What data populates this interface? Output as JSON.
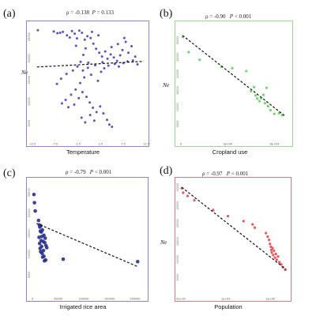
{
  "chart_data": [
    {
      "type": "scatter",
      "panel_label": "(a)",
      "stat_prefix": "ρ = -0.138",
      "p_label": "P",
      "stat_value": "= 0.133",
      "xlabel": "Temperature",
      "ylabel": "Ne",
      "color": "#4b3fb8",
      "frame_color": "#8c86cf",
      "xlim": [
        -12.5,
        12.5
      ],
      "ylim": [
        1000,
        28000
      ],
      "x_ticks": [
        "-12.5",
        "-7.5",
        "-2.5",
        "2.5",
        "7.5",
        "12.5"
      ],
      "y_ticks": [
        "5000",
        "10000",
        "15000",
        "20000",
        "25000"
      ],
      "y_tick_values": [
        5000,
        10000,
        15000,
        20000,
        25000
      ],
      "fit": [
        [
          -11.5,
          18000
        ],
        [
          12,
          19300
        ]
      ],
      "points": [
        [
          -11.3,
          26500
        ],
        [
          -7.8,
          26200
        ],
        [
          -7.0,
          25800
        ],
        [
          -6.4,
          25900
        ],
        [
          -5.8,
          26100
        ],
        [
          -4.9,
          25300
        ],
        [
          -4.3,
          24800
        ],
        [
          -3.8,
          26300
        ],
        [
          -3.2,
          25700
        ],
        [
          -2.7,
          24600
        ],
        [
          -2.2,
          26400
        ],
        [
          -1.6,
          25900
        ],
        [
          -1.0,
          24300
        ],
        [
          -0.4,
          25100
        ],
        [
          0.3,
          24700
        ],
        [
          0.9,
          23400
        ],
        [
          1.5,
          22200
        ],
        [
          2.2,
          21300
        ],
        [
          2.8,
          20400
        ],
        [
          3.5,
          21600
        ],
        [
          4.0,
          19900
        ],
        [
          4.7,
          20900
        ],
        [
          5.4,
          20200
        ],
        [
          6.1,
          19400
        ],
        [
          6.8,
          20700
        ],
        [
          7.3,
          21900
        ],
        [
          8.0,
          23800
        ],
        [
          8.6,
          21300
        ],
        [
          9.3,
          22800
        ],
        [
          10.1,
          20400
        ],
        [
          -0.8,
          22300
        ],
        [
          -1.3,
          20800
        ],
        [
          -1.9,
          19200
        ],
        [
          -2.6,
          18100
        ],
        [
          -0.3,
          17800
        ],
        [
          0.4,
          16200
        ],
        [
          -1.1,
          15600
        ],
        [
          -2.0,
          14300
        ],
        [
          -3.0,
          12800
        ],
        [
          -4.0,
          11600
        ],
        [
          -5.2,
          10400
        ],
        [
          -6.0,
          9600
        ],
        [
          -4.6,
          8700
        ],
        [
          -3.3,
          9300
        ],
        [
          -2.3,
          10800
        ],
        [
          -1.5,
          12200
        ],
        [
          -0.6,
          11100
        ],
        [
          0.1,
          9800
        ],
        [
          0.8,
          8600
        ],
        [
          1.6,
          7600
        ],
        [
          2.4,
          8900
        ],
        [
          3.1,
          7300
        ],
        [
          3.9,
          5800
        ],
        [
          4.4,
          4700
        ],
        [
          5.0,
          4200
        ],
        [
          -1.7,
          6300
        ],
        [
          -0.9,
          5200
        ],
        [
          0.2,
          6900
        ],
        [
          1.1,
          5600
        ],
        [
          1.9,
          14800
        ],
        [
          2.6,
          16900
        ],
        [
          3.3,
          17700
        ],
        [
          4.2,
          18300
        ],
        [
          5.6,
          18700
        ],
        [
          6.5,
          18100
        ],
        [
          7.5,
          18900
        ],
        [
          8.4,
          19300
        ],
        [
          9.6,
          19500
        ],
        [
          10.6,
          18600
        ],
        [
          -3.6,
          17200
        ],
        [
          -5.0,
          16400
        ],
        [
          -6.2,
          15300
        ],
        [
          -7.1,
          14100
        ],
        [
          -0.2,
          19000
        ],
        [
          1.3,
          18400
        ],
        [
          2.9,
          19100
        ],
        [
          -1.4,
          17200
        ],
        [
          4.9,
          22600
        ],
        [
          6.3,
          23300
        ],
        [
          7.7,
          24700
        ],
        [
          2.0,
          25300
        ],
        [
          0.6,
          26100
        ],
        [
          -2.9,
          22900
        ]
      ]
    },
    {
      "type": "scatter",
      "panel_label": "(b)",
      "stat_prefix": "ρ = -0.90",
      "p_label": "P",
      "stat_value": "< 0.001",
      "xlabel": "Cropland use",
      "ylabel": "Ne",
      "color": "#5fd35a",
      "frame_color": "#9ad797",
      "xlim": [
        0,
        70000
      ],
      "ylim": [
        0,
        35000
      ],
      "x_ticks": [
        "0",
        "3e+04",
        "6e+04"
      ],
      "x_tick_values": [
        0,
        30000,
        60000
      ],
      "y_ticks": [
        "5000",
        "10000",
        "15000",
        "20000",
        "25000",
        "30000"
      ],
      "y_tick_values": [
        5000,
        10000,
        15000,
        20000,
        25000,
        30000
      ],
      "fit": [
        [
          1000,
          31500
        ],
        [
          67000,
          7300
        ]
      ],
      "points": [
        [
          1200,
          31000
        ],
        [
          5000,
          26500
        ],
        [
          12000,
          24200
        ],
        [
          26000,
          22100
        ],
        [
          33000,
          21700
        ],
        [
          42000,
          20800
        ],
        [
          45000,
          14800
        ],
        [
          47000,
          16000
        ],
        [
          48000,
          13500
        ],
        [
          49000,
          12600
        ],
        [
          50500,
          11800
        ],
        [
          51500,
          12700
        ],
        [
          53000,
          13700
        ],
        [
          54000,
          11200
        ],
        [
          55000,
          15800
        ],
        [
          56000,
          10300
        ],
        [
          57500,
          9100
        ],
        [
          60000,
          8000
        ],
        [
          63000,
          8200
        ],
        [
          65000,
          7600
        ]
      ]
    },
    {
      "type": "scatter",
      "panel_label": "(c)",
      "stat_prefix": "ρ = -0.79",
      "p_label": "P",
      "stat_value": "< 0.001",
      "xlabel": "Irrigated rice area",
      "ylabel": "",
      "color": "#28308a",
      "frame_color": "#8c86cf",
      "xlim": [
        0,
        220000
      ],
      "ylim": [
        0,
        28000
      ],
      "x_ticks": [
        "0",
        "50000",
        "100000",
        "150000",
        "200000"
      ],
      "x_tick_values": [
        0,
        50000,
        100000,
        150000,
        200000
      ],
      "y_ticks": [
        "5000",
        "10000",
        "15000",
        "20000",
        "25000"
      ],
      "y_tick_values": [
        5000,
        10000,
        15000,
        20000,
        25000
      ],
      "fit": [
        [
          8000,
          17500
        ],
        [
          205000,
          7000
        ]
      ],
      "points": [
        [
          3000,
          24500
        ],
        [
          4000,
          22500
        ],
        [
          5500,
          20500
        ],
        [
          12000,
          18200
        ],
        [
          13500,
          17100
        ],
        [
          14500,
          16600
        ],
        [
          15500,
          15600
        ],
        [
          16500,
          16900
        ],
        [
          17500,
          15400
        ],
        [
          18500,
          14300
        ],
        [
          19500,
          15900
        ],
        [
          21000,
          13100
        ],
        [
          22500,
          14600
        ],
        [
          24000,
          12800
        ],
        [
          25000,
          13900
        ],
        [
          26500,
          12100
        ],
        [
          13000,
          14100
        ],
        [
          14000,
          12600
        ],
        [
          15000,
          11400
        ],
        [
          16000,
          10600
        ],
        [
          17000,
          13300
        ],
        [
          18000,
          11900
        ],
        [
          19000,
          10200
        ],
        [
          20000,
          9300
        ],
        [
          21500,
          10900
        ],
        [
          22500,
          9500
        ],
        [
          23500,
          8400
        ],
        [
          26000,
          8600
        ],
        [
          28000,
          11600
        ],
        [
          60000,
          8800
        ],
        [
          205000,
          8200
        ]
      ]
    },
    {
      "type": "scatter",
      "panel_label": "(d)",
      "stat_prefix": "ρ = -0.97",
      "p_label": "P",
      "stat_value": "< 0.001",
      "xlabel": "Population",
      "ylabel": "Ne",
      "color": "#e8454a",
      "frame_color": "#e07a7d",
      "xlim": [
        0,
        2.4
      ],
      "ylim": [
        0,
        32000
      ],
      "x_ticks": [
        "0e+00",
        "1e+09",
        "2e+09"
      ],
      "x_tick_values": [
        0,
        1,
        2
      ],
      "y_ticks": [
        "5000",
        "10000",
        "15000",
        "20000",
        "25000",
        "30000"
      ],
      "y_tick_values": [
        5000,
        10000,
        15000,
        20000,
        25000,
        30000
      ],
      "fit": [
        [
          0.02,
          30000
        ],
        [
          2.35,
          7200
        ]
      ],
      "points": [
        [
          0.02,
          29700
        ],
        [
          0.05,
          28500
        ],
        [
          0.15,
          27600
        ],
        [
          0.3,
          26400
        ],
        [
          0.72,
          23700
        ],
        [
          1.05,
          22000
        ],
        [
          1.4,
          20600
        ],
        [
          1.6,
          19700
        ],
        [
          1.65,
          18800
        ],
        [
          1.9,
          17300
        ],
        [
          1.94,
          16300
        ],
        [
          1.97,
          15400
        ],
        [
          1.99,
          14300
        ],
        [
          2.01,
          13500
        ],
        [
          2.02,
          12600
        ],
        [
          2.03,
          11900
        ],
        [
          2.05,
          13100
        ],
        [
          2.06,
          11200
        ],
        [
          2.08,
          12400
        ],
        [
          2.1,
          10500
        ],
        [
          2.12,
          11500
        ],
        [
          2.14,
          9900
        ],
        [
          2.17,
          10800
        ],
        [
          2.2,
          9200
        ],
        [
          2.24,
          8600
        ],
        [
          2.28,
          7800
        ],
        [
          2.33,
          7100
        ]
      ]
    }
  ]
}
